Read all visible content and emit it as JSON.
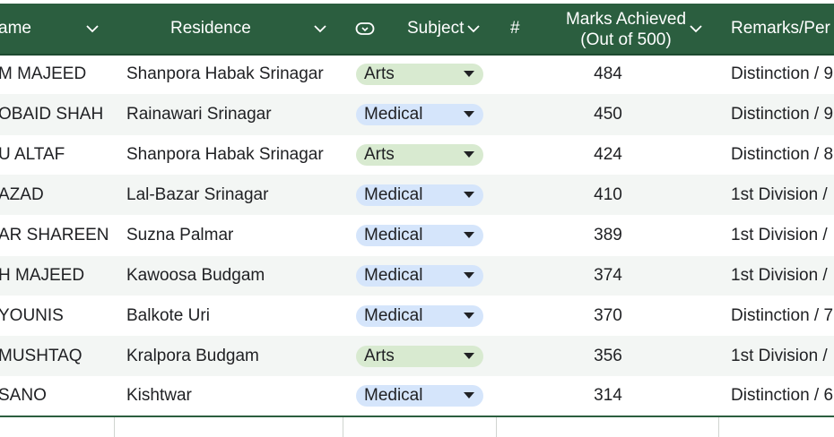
{
  "header": {
    "name": "ame",
    "residence": "Residence",
    "subject": "Subject",
    "hash": "#",
    "marks_line1": "Marks Achieved",
    "marks_line2": "(Out of 500)",
    "remarks": "Remarks/Per"
  },
  "chip_colors": {
    "Arts": "#d8ead0",
    "Medical": "#d5e5fb"
  },
  "header_color": "#2b5e3f",
  "rows": [
    {
      "name": "M MAJEED",
      "residence": "Shanpora Habak Srinagar",
      "subject": "Arts",
      "marks": "484",
      "remarks": "Distinction / 9"
    },
    {
      "name": "OBAID SHAH",
      "residence": "Rainawari Srinagar",
      "subject": "Medical",
      "marks": "450",
      "remarks": "Distinction / 9"
    },
    {
      "name": "U ALTAF",
      "residence": "Shanpora Habak Srinagar",
      "subject": "Arts",
      "marks": "424",
      "remarks": "Distinction / 8"
    },
    {
      "name": "AZAD",
      "residence": "Lal-Bazar Srinagar",
      "subject": "Medical",
      "marks": "410",
      "remarks": "1st Division /"
    },
    {
      "name": "AR SHAREEN",
      "residence": "Suzna Palmar",
      "subject": "Medical",
      "marks": "389",
      "remarks": "1st Division /"
    },
    {
      "name": "H MAJEED",
      "residence": "Kawoosa Budgam",
      "subject": "Medical",
      "marks": "374",
      "remarks": "1st Division /"
    },
    {
      "name": "YOUNIS",
      "residence": "Balkote Uri",
      "subject": "Medical",
      "marks": "370",
      "remarks": "Distinction / 7"
    },
    {
      "name": "MUSHTAQ",
      "residence": "Kralpora Budgam",
      "subject": "Arts",
      "marks": "356",
      "remarks": "1st Division /"
    },
    {
      "name": "SANO",
      "residence": "Kishtwar",
      "subject": "Medical",
      "marks": "314",
      "remarks": "Distinction / 6"
    }
  ]
}
